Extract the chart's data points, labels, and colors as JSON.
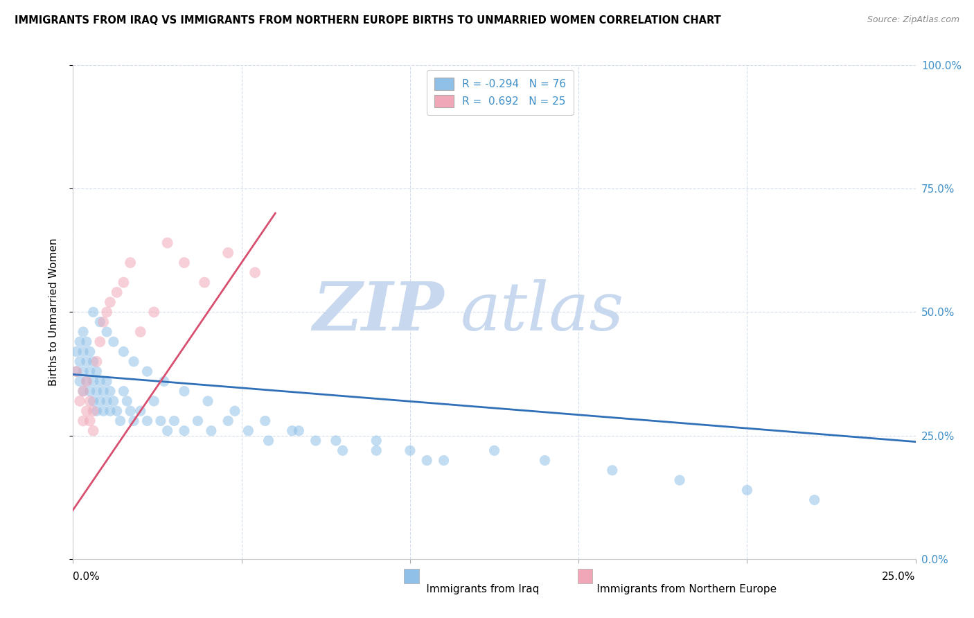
{
  "title": "IMMIGRANTS FROM IRAQ VS IMMIGRANTS FROM NORTHERN EUROPE BIRTHS TO UNMARRIED WOMEN CORRELATION CHART",
  "source": "Source: ZipAtlas.com",
  "ylabel": "Births to Unmarried Women",
  "xlim": [
    0,
    0.25
  ],
  "ylim": [
    0,
    1.0
  ],
  "legend_r1": "R = -0.294",
  "legend_n1": "N = 76",
  "legend_r2": "R =  0.692",
  "legend_n2": "N = 25",
  "blue_color": "#90c0e8",
  "pink_color": "#f0a8b8",
  "blue_line_color": "#3070b8",
  "pink_line_color": "#d85070",
  "right_tick_color": "#4090c8",
  "watermark_zip_color": "#c8d8ee",
  "watermark_atlas_color": "#c8d8ee",
  "blue_scatter_x": [
    0.001,
    0.001,
    0.002,
    0.002,
    0.002,
    0.003,
    0.003,
    0.003,
    0.003,
    0.004,
    0.004,
    0.004,
    0.005,
    0.005,
    0.005,
    0.006,
    0.006,
    0.006,
    0.007,
    0.007,
    0.007,
    0.008,
    0.008,
    0.009,
    0.009,
    0.01,
    0.01,
    0.011,
    0.011,
    0.012,
    0.013,
    0.014,
    0.015,
    0.016,
    0.017,
    0.018,
    0.02,
    0.022,
    0.024,
    0.026,
    0.028,
    0.03,
    0.033,
    0.037,
    0.041,
    0.046,
    0.052,
    0.058,
    0.065,
    0.072,
    0.08,
    0.09,
    0.1,
    0.11,
    0.125,
    0.14,
    0.16,
    0.18,
    0.2,
    0.22,
    0.006,
    0.008,
    0.01,
    0.012,
    0.015,
    0.018,
    0.022,
    0.027,
    0.033,
    0.04,
    0.048,
    0.057,
    0.067,
    0.078,
    0.09,
    0.105
  ],
  "blue_scatter_y": [
    0.38,
    0.42,
    0.36,
    0.4,
    0.44,
    0.34,
    0.38,
    0.42,
    0.46,
    0.36,
    0.4,
    0.44,
    0.34,
    0.38,
    0.42,
    0.32,
    0.36,
    0.4,
    0.3,
    0.34,
    0.38,
    0.32,
    0.36,
    0.3,
    0.34,
    0.32,
    0.36,
    0.3,
    0.34,
    0.32,
    0.3,
    0.28,
    0.34,
    0.32,
    0.3,
    0.28,
    0.3,
    0.28,
    0.32,
    0.28,
    0.26,
    0.28,
    0.26,
    0.28,
    0.26,
    0.28,
    0.26,
    0.24,
    0.26,
    0.24,
    0.22,
    0.24,
    0.22,
    0.2,
    0.22,
    0.2,
    0.18,
    0.16,
    0.14,
    0.12,
    0.5,
    0.48,
    0.46,
    0.44,
    0.42,
    0.4,
    0.38,
    0.36,
    0.34,
    0.32,
    0.3,
    0.28,
    0.26,
    0.24,
    0.22,
    0.2
  ],
  "pink_scatter_x": [
    0.001,
    0.002,
    0.003,
    0.003,
    0.004,
    0.004,
    0.005,
    0.005,
    0.006,
    0.006,
    0.007,
    0.008,
    0.009,
    0.01,
    0.011,
    0.013,
    0.015,
    0.017,
    0.02,
    0.024,
    0.028,
    0.033,
    0.039,
    0.046,
    0.054
  ],
  "pink_scatter_y": [
    0.38,
    0.32,
    0.34,
    0.28,
    0.3,
    0.36,
    0.32,
    0.28,
    0.26,
    0.3,
    0.4,
    0.44,
    0.48,
    0.5,
    0.52,
    0.54,
    0.56,
    0.6,
    0.46,
    0.5,
    0.64,
    0.6,
    0.56,
    0.62,
    0.58
  ],
  "blue_line_x": [
    -0.002,
    0.255
  ],
  "blue_line_y": [
    0.375,
    0.235
  ],
  "pink_line_x": [
    -0.002,
    0.06
  ],
  "pink_line_y": [
    0.08,
    0.7
  ],
  "dot_size_blue": 120,
  "dot_size_pink": 130,
  "dot_alpha": 0.55
}
